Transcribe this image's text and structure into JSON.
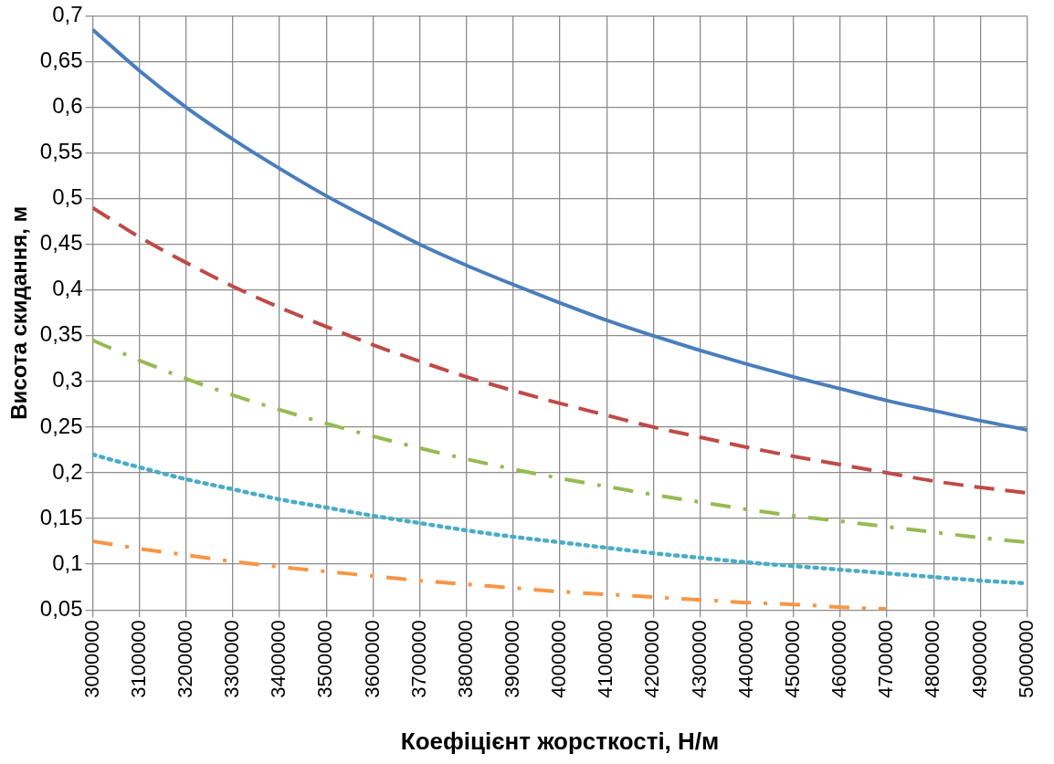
{
  "chart_data": {
    "type": "line",
    "xlabel": "Коефіцієнт жорсткості, Н/м",
    "ylabel": "Висота скидання, м",
    "x": [
      3000000,
      3100000,
      3200000,
      3300000,
      3400000,
      3500000,
      3600000,
      3700000,
      3800000,
      3900000,
      4000000,
      4100000,
      4200000,
      4300000,
      4400000,
      4500000,
      4600000,
      4700000,
      4800000,
      4900000,
      5000000
    ],
    "series": [
      {
        "color": "#4a7ebb",
        "line_style": "solid",
        "values": [
          0.685,
          0.64,
          0.6,
          0.565,
          0.533,
          0.503,
          0.476,
          0.45,
          0.427,
          0.406,
          0.386,
          0.367,
          0.35,
          0.334,
          0.319,
          0.305,
          0.292,
          0.279,
          0.268,
          0.257,
          0.247
        ]
      },
      {
        "color": "#be4b48",
        "line_style": "dashed",
        "values": [
          0.49,
          0.458,
          0.43,
          0.404,
          0.381,
          0.36,
          0.34,
          0.322,
          0.305,
          0.29,
          0.276,
          0.263,
          0.25,
          0.239,
          0.228,
          0.218,
          0.209,
          0.2,
          0.191,
          0.184,
          0.178
        ]
      },
      {
        "color": "#98b954",
        "line_style": "dashdot",
        "values": [
          0.345,
          0.323,
          0.303,
          0.285,
          0.269,
          0.254,
          0.24,
          0.227,
          0.215,
          0.204,
          0.194,
          0.185,
          0.176,
          0.168,
          0.16,
          0.153,
          0.147,
          0.141,
          0.135,
          0.129,
          0.124
        ]
      },
      {
        "color": "#4bacc6",
        "line_style": "dotted",
        "values": [
          0.22,
          0.206,
          0.193,
          0.182,
          0.171,
          0.162,
          0.153,
          0.145,
          0.137,
          0.13,
          0.124,
          0.118,
          0.112,
          0.107,
          0.102,
          0.098,
          0.094,
          0.09,
          0.086,
          0.082,
          0.079
        ]
      },
      {
        "color": "#f79646",
        "line_style": "dashdot",
        "values": [
          0.125,
          0.117,
          0.11,
          0.103,
          0.097,
          0.092,
          0.087,
          0.082,
          0.078,
          0.074,
          0.07,
          0.067,
          0.064,
          0.061,
          0.058,
          0.056,
          0.053,
          0.051,
          null,
          null,
          null
        ]
      }
    ],
    "xlim": [
      3000000,
      5000000
    ],
    "xticks": [
      3000000,
      3100000,
      3200000,
      3300000,
      3400000,
      3500000,
      3600000,
      3700000,
      3800000,
      3900000,
      4000000,
      4100000,
      4200000,
      4300000,
      4400000,
      4500000,
      4600000,
      4700000,
      4800000,
      4900000,
      5000000
    ],
    "ylim": [
      0.05,
      0.7
    ],
    "yticks": [
      {
        "value": 0.05,
        "label": "0,05"
      },
      {
        "value": 0.1,
        "label": "0,1"
      },
      {
        "value": 0.15,
        "label": "0,15"
      },
      {
        "value": 0.2,
        "label": "0,2"
      },
      {
        "value": 0.25,
        "label": "0,25"
      },
      {
        "value": 0.3,
        "label": "0,3"
      },
      {
        "value": 0.35,
        "label": "0,35"
      },
      {
        "value": 0.4,
        "label": "0,4"
      },
      {
        "value": 0.45,
        "label": "0,45"
      },
      {
        "value": 0.5,
        "label": "0,5"
      },
      {
        "value": 0.55,
        "label": "0,55"
      },
      {
        "value": 0.6,
        "label": "0,6"
      },
      {
        "value": 0.65,
        "label": "0,65"
      },
      {
        "value": 0.7,
        "label": "0,7"
      }
    ],
    "grid": true,
    "legend": false,
    "marker": "none"
  }
}
